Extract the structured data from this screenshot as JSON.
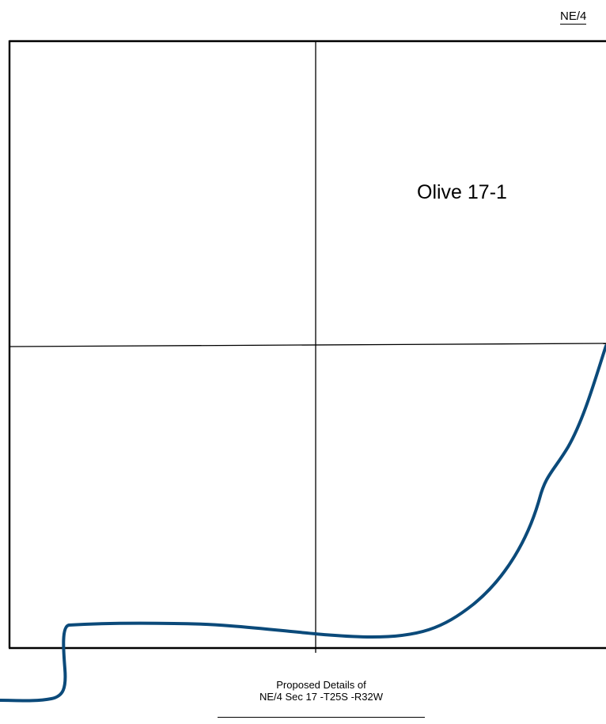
{
  "header": {
    "quarter_label": "NE/4"
  },
  "plat": {
    "well_name": "Olive 17-1",
    "colors": {
      "boundary": "#000000",
      "path": "#0b4a7a"
    }
  },
  "caption": {
    "line1": "Proposed Details of",
    "line2": "NE/4 Sec 17 -T25S -R32W"
  }
}
